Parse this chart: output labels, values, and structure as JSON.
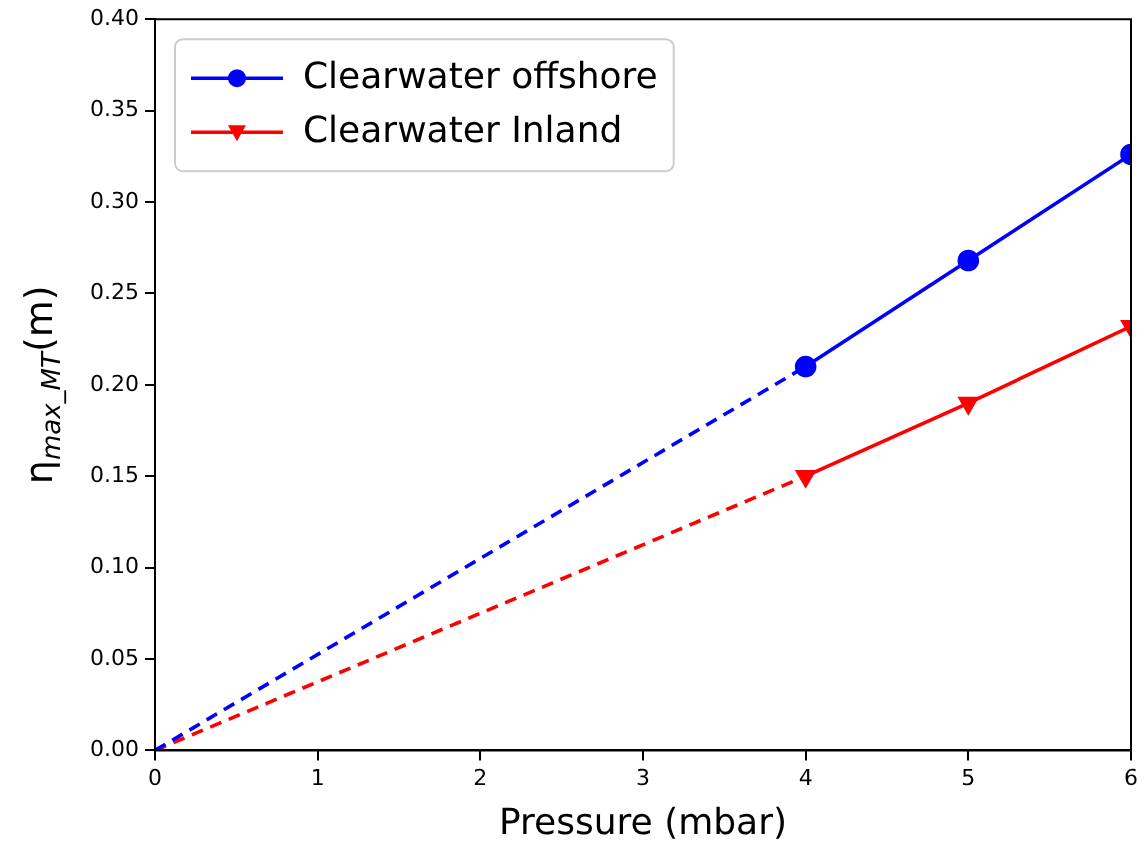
{
  "chart_data": {
    "type": "line",
    "xlabel": "Pressure (mbar)",
    "ylabel": "η$_{max_MT}$(m)",
    "xlim": [
      0,
      6
    ],
    "xticks": [
      0,
      1,
      2,
      3,
      4,
      5,
      6
    ],
    "ylim": [
      0,
      0.4
    ],
    "yticks": [
      {
        "value": 0,
        "label": "0.00"
      },
      {
        "value": 0.05,
        "label": "0.05"
      },
      {
        "value": 0.1,
        "label": "0.10"
      },
      {
        "value": 0.15,
        "label": "0.15"
      },
      {
        "value": 0.2,
        "label": "0.20"
      },
      {
        "value": 0.25,
        "label": "0.25"
      },
      {
        "value": 0.3,
        "label": "0.30"
      },
      {
        "value": 0.35,
        "label": "0.35"
      },
      {
        "value": 0.4,
        "label": "0.40"
      }
    ],
    "grid": false,
    "legend": "top left",
    "series": [
      {
        "name": "Clearwater offshore",
        "color": "#0000ff",
        "x": [
          4,
          5,
          6
        ],
        "values": [
          0.21,
          0.268,
          0.326
        ],
        "marker": "circle",
        "line_style": "solid"
      },
      {
        "name": "Clearwater Inland",
        "color": "#ff0000",
        "x": [
          4,
          5,
          6
        ],
        "values": [
          0.15,
          0.19,
          0.232
        ],
        "marker": "triangle",
        "line_style": "solid"
      },
      {
        "color": "#0000ff",
        "x": [
          0,
          4
        ],
        "values": [
          0,
          0.21
        ],
        "marker": "none",
        "line_style": "dashed"
      },
      {
        "color": "#ff0000",
        "x": [
          0,
          4
        ],
        "values": [
          0,
          0.15
        ],
        "marker": "none",
        "line_style": "dashed"
      }
    ]
  }
}
